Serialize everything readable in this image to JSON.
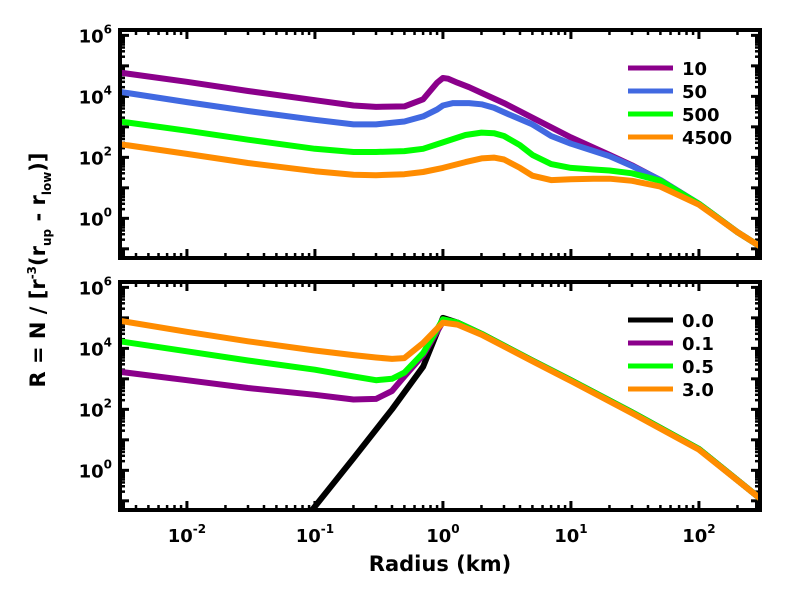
{
  "chart_data": [
    {
      "type": "line",
      "panel": "top",
      "xscale": "log",
      "yscale": "log",
      "xlim": [
        0.003,
        300
      ],
      "ylim": [
        0.05,
        1500000
      ],
      "yticks": [
        {
          "value": 1,
          "base": "10",
          "exp": "0"
        },
        {
          "value": 100,
          "base": "10",
          "exp": "2"
        },
        {
          "value": 10000,
          "base": "10",
          "exp": "4"
        },
        {
          "value": 1000000,
          "base": "10",
          "exp": "6"
        }
      ],
      "legend_position": "top-right",
      "series": [
        {
          "name": "10",
          "color": "#8B008B",
          "x": [
            0.003,
            0.01,
            0.03,
            0.1,
            0.2,
            0.3,
            0.5,
            0.7,
            0.9,
            1.0,
            1.1,
            1.3,
            1.6,
            2.0,
            3.0,
            5.0,
            10,
            20,
            30,
            50,
            100,
            200,
            300
          ],
          "y": [
            60000,
            30000,
            15000,
            7500,
            5000,
            4500,
            4700,
            8000,
            28000,
            40000,
            38000,
            28000,
            20000,
            13000,
            6000,
            2000,
            450,
            120,
            55,
            18,
            3.0,
            0.35,
            0.12
          ]
        },
        {
          "name": "50",
          "color": "#4169E1",
          "x": [
            0.003,
            0.01,
            0.03,
            0.1,
            0.2,
            0.3,
            0.5,
            0.7,
            0.9,
            1.0,
            1.2,
            1.6,
            2.0,
            2.5,
            3.0,
            5.0,
            7.0,
            10,
            20,
            30,
            50,
            100,
            200,
            300
          ],
          "y": [
            14000,
            6500,
            3300,
            1700,
            1200,
            1200,
            1500,
            2200,
            3700,
            5000,
            6000,
            6000,
            5500,
            4200,
            3000,
            1200,
            500,
            280,
            110,
            52,
            18,
            3.0,
            0.35,
            0.12
          ]
        },
        {
          "name": "500",
          "color": "#00FF00",
          "x": [
            0.003,
            0.01,
            0.03,
            0.1,
            0.2,
            0.3,
            0.5,
            0.7,
            1.0,
            1.5,
            2.0,
            2.5,
            3.0,
            4.0,
            5.0,
            7.0,
            10,
            15,
            20,
            30,
            50,
            100,
            200,
            300
          ],
          "y": [
            1500,
            750,
            380,
            190,
            150,
            150,
            160,
            190,
            310,
            540,
            650,
            620,
            500,
            250,
            120,
            60,
            45,
            40,
            37,
            30,
            17,
            3.0,
            0.35,
            0.12
          ]
        },
        {
          "name": "4500",
          "color": "#FF8C00",
          "x": [
            0.003,
            0.01,
            0.03,
            0.1,
            0.2,
            0.3,
            0.5,
            0.7,
            1.0,
            1.5,
            2.0,
            2.5,
            3.0,
            4.0,
            5.0,
            7.0,
            10,
            15,
            20,
            30,
            50,
            100,
            200,
            300
          ],
          "y": [
            270,
            130,
            65,
            35,
            27,
            26,
            28,
            33,
            45,
            70,
            92,
            98,
            85,
            45,
            25,
            18,
            19,
            20,
            20,
            17,
            11,
            2.8,
            0.35,
            0.12
          ]
        }
      ]
    },
    {
      "type": "line",
      "panel": "bottom",
      "xscale": "log",
      "yscale": "log",
      "xlim": [
        0.003,
        300
      ],
      "ylim": [
        0.05,
        1500000
      ],
      "yticks": [
        {
          "value": 1,
          "base": "10",
          "exp": "0"
        },
        {
          "value": 100,
          "base": "10",
          "exp": "2"
        },
        {
          "value": 10000,
          "base": "10",
          "exp": "4"
        },
        {
          "value": 1000000,
          "base": "10",
          "exp": "6"
        }
      ],
      "xticks": [
        {
          "value": 0.01,
          "base": "10",
          "exp": "-2"
        },
        {
          "value": 0.1,
          "base": "10",
          "exp": "-1"
        },
        {
          "value": 1,
          "base": "10",
          "exp": "0"
        },
        {
          "value": 10,
          "base": "10",
          "exp": "1"
        },
        {
          "value": 100,
          "base": "10",
          "exp": "2"
        }
      ],
      "xlabel": "Radius (km)",
      "legend_position": "top-right",
      "series": [
        {
          "name": "0.0",
          "color": "#000000",
          "x": [
            0.095,
            0.2,
            0.4,
            0.7,
            1.0,
            1.3,
            2.0,
            5.0,
            10,
            30,
            100,
            300
          ],
          "y": [
            0.05,
            2.5,
            100,
            2500,
            100000,
            70000,
            30000,
            4000,
            900,
            80,
            5.0,
            0.12
          ]
        },
        {
          "name": "0.1",
          "color": "#8B008B",
          "x": [
            0.003,
            0.01,
            0.03,
            0.1,
            0.2,
            0.3,
            0.4,
            0.5,
            0.7,
            1.0,
            1.3,
            2.0,
            5.0,
            10,
            30,
            100,
            300
          ],
          "y": [
            1700,
            900,
            500,
            300,
            210,
            220,
            400,
            1200,
            6000,
            75000,
            70000,
            30000,
            4000,
            900,
            80,
            5.0,
            0.12
          ]
        },
        {
          "name": "0.5",
          "color": "#00FF00",
          "x": [
            0.003,
            0.01,
            0.03,
            0.1,
            0.2,
            0.3,
            0.4,
            0.5,
            0.7,
            1.0,
            1.3,
            2.0,
            5.0,
            10,
            30,
            100,
            300
          ],
          "y": [
            17000,
            8000,
            4000,
            2000,
            1200,
            900,
            1000,
            1600,
            7000,
            90000,
            70000,
            30000,
            4000,
            900,
            80,
            5.0,
            0.12
          ]
        },
        {
          "name": "3.0",
          "color": "#FF8C00",
          "x": [
            0.003,
            0.01,
            0.03,
            0.1,
            0.2,
            0.3,
            0.4,
            0.5,
            0.7,
            1.0,
            1.3,
            2.0,
            5.0,
            10,
            30,
            100,
            300
          ],
          "y": [
            80000,
            35000,
            17000,
            8500,
            6000,
            5000,
            4500,
            4800,
            15000,
            70000,
            60000,
            28000,
            3800,
            850,
            75,
            4.8,
            0.12
          ]
        }
      ]
    }
  ],
  "ylabel": {
    "pre": "R = N / [r",
    "exp": "-3",
    "mid1": "(r",
    "sub1": "up",
    "mid2": " - r",
    "sub2": "low",
    "post": ")]"
  }
}
